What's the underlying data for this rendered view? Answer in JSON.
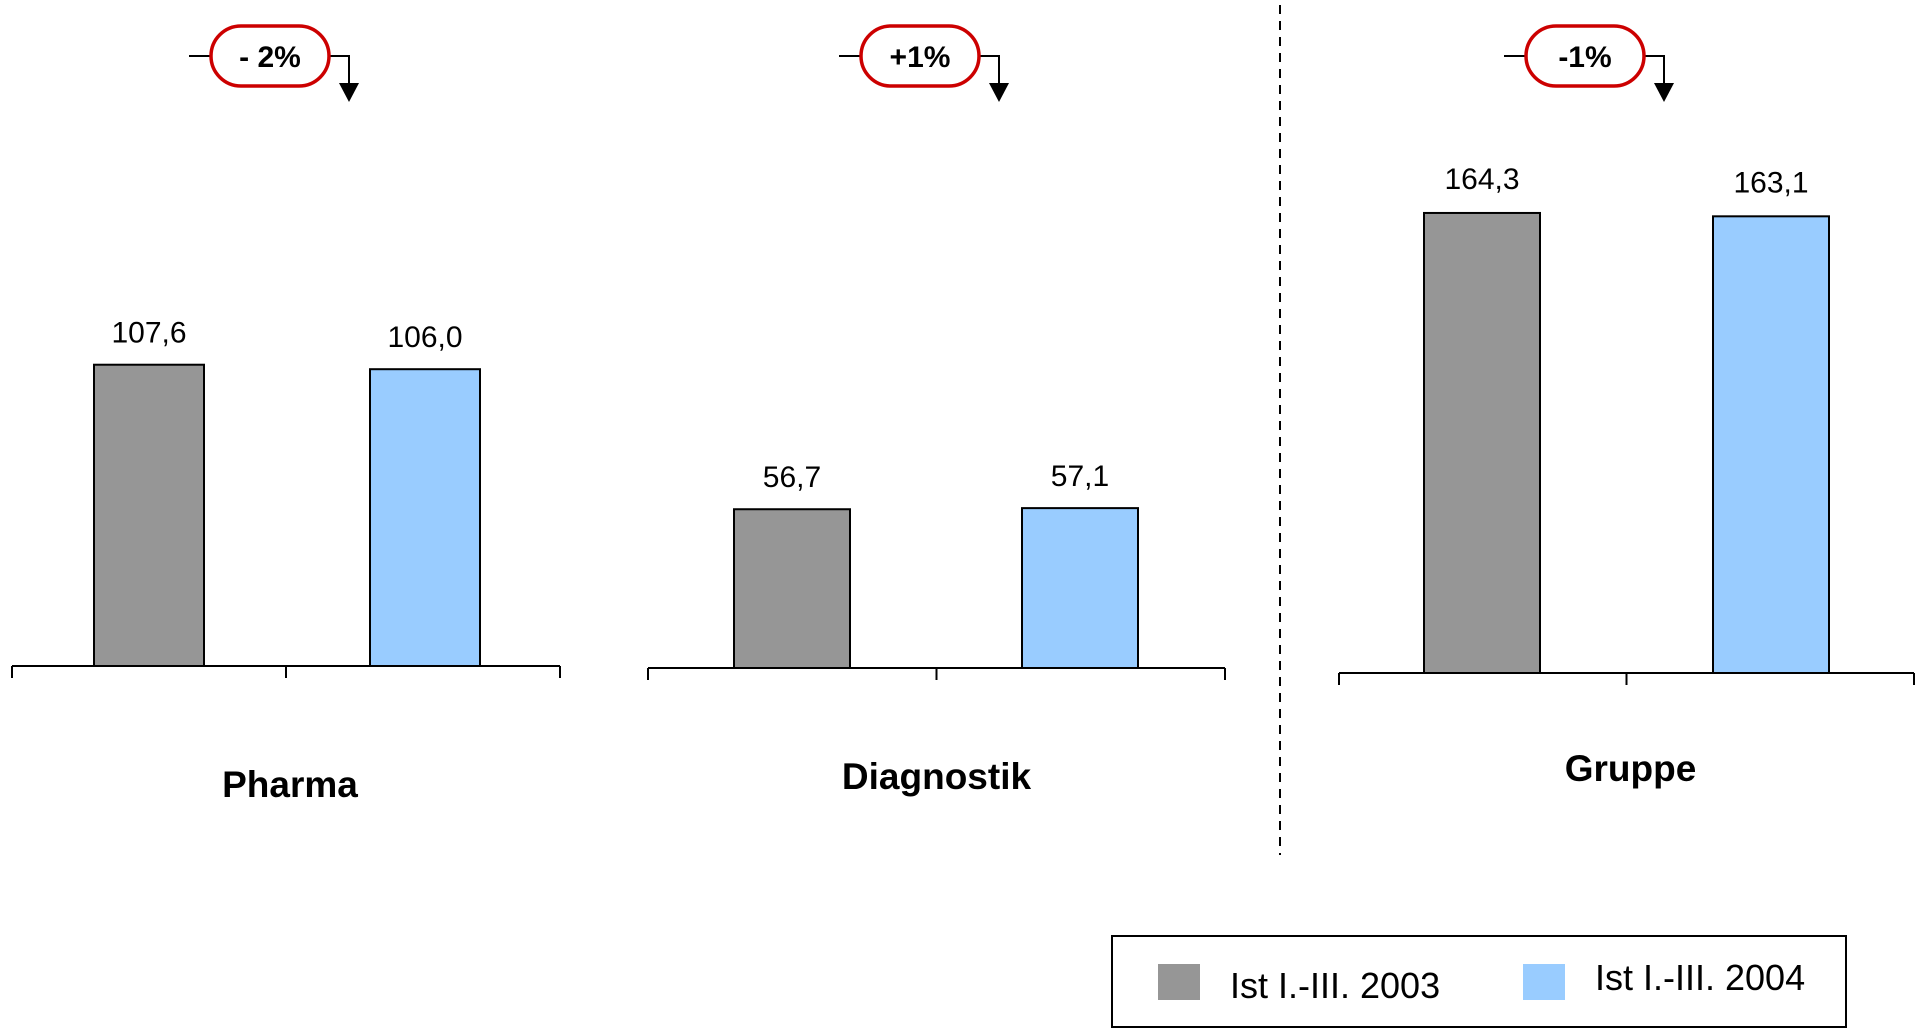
{
  "colors": {
    "series_2003": "#969696",
    "series_2004": "#99ccff",
    "badge_border": "#cc0000"
  },
  "chart_data": [
    {
      "type": "bar",
      "categories": [
        "Ist I.-III. 2003",
        "Ist I.-III. 2004"
      ],
      "values": [
        107.6,
        106.0
      ],
      "value_labels": [
        "107,6",
        "106,0"
      ],
      "xlabel": "Pharma",
      "change_label": "- 2%"
    },
    {
      "type": "bar",
      "categories": [
        "Ist I.-III. 2003",
        "Ist I.-III. 2004"
      ],
      "values": [
        56.7,
        57.1
      ],
      "value_labels": [
        "56,7",
        "57,1"
      ],
      "xlabel": "Diagnostik",
      "change_label": "+1%"
    },
    {
      "type": "bar",
      "categories": [
        "Ist I.-III. 2003",
        "Ist I.-III. 2004"
      ],
      "values": [
        164.3,
        163.1
      ],
      "value_labels": [
        "164,3",
        "163,1"
      ],
      "xlabel": "Gruppe",
      "change_label": "-1%"
    }
  ],
  "legend": {
    "placement": "bottom-right",
    "items": [
      {
        "label": "Ist I.-III. 2003",
        "color": "#969696"
      },
      {
        "label": "Ist I.-III. 2004",
        "color": "#99ccff"
      }
    ]
  }
}
